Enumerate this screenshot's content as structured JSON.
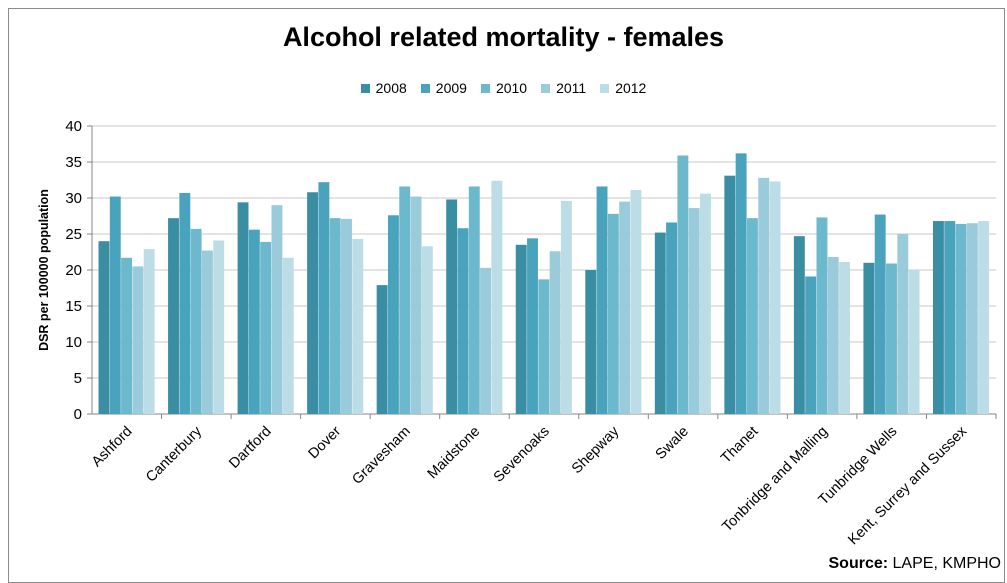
{
  "chart_data": {
    "type": "bar",
    "title": "Alcohol related mortality - females",
    "xlabel": "",
    "ylabel": "DSR per 100000 population",
    "ylim": [
      0,
      40
    ],
    "yticks": [
      0,
      5,
      10,
      15,
      20,
      25,
      30,
      35,
      40
    ],
    "grid": true,
    "legend_position": "top",
    "categories": [
      "Ashford",
      "Canterbury",
      "Dartford",
      "Dover",
      "Gravesham",
      "Maidstone",
      "Sevenoaks",
      "Shepway",
      "Swale",
      "Thanet",
      "Tonbridge and Malling",
      "Tunbridge Wells",
      "Kent, Surrey and Sussex"
    ],
    "series": [
      {
        "name": "2008",
        "color": "#3a8ea3",
        "values": [
          24.0,
          27.2,
          29.4,
          30.8,
          17.9,
          29.8,
          23.5,
          20.0,
          25.2,
          33.1,
          24.7,
          21.0,
          26.8
        ]
      },
      {
        "name": "2009",
        "color": "#49a3bc",
        "values": [
          30.2,
          30.7,
          25.6,
          32.2,
          27.6,
          25.8,
          24.4,
          31.6,
          26.6,
          36.2,
          19.1,
          27.7,
          26.8
        ]
      },
      {
        "name": "2010",
        "color": "#6cb8cc",
        "values": [
          21.7,
          25.7,
          23.9,
          27.2,
          31.6,
          31.6,
          18.7,
          27.8,
          35.9,
          27.2,
          27.3,
          20.9,
          26.4
        ]
      },
      {
        "name": "2011",
        "color": "#99cbda",
        "values": [
          20.5,
          22.7,
          29.0,
          27.1,
          30.2,
          20.3,
          22.6,
          29.5,
          28.6,
          32.8,
          21.8,
          25.0,
          26.5
        ]
      },
      {
        "name": "2012",
        "color": "#bcdce6",
        "values": [
          22.9,
          24.1,
          21.7,
          24.3,
          23.3,
          32.4,
          29.6,
          31.1,
          30.6,
          32.3,
          21.1,
          20.0,
          26.8
        ]
      }
    ]
  },
  "source": {
    "label": "Source:",
    "text": " LAPE, KMPHO"
  }
}
